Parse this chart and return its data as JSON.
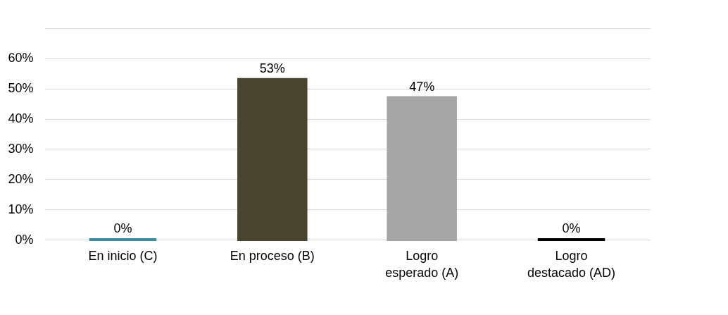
{
  "chart_data": {
    "type": "bar",
    "categories": [
      "En inicio (C)",
      "En proceso (B)",
      "Logro esperado (A)",
      "Logro destacado (AD)"
    ],
    "values": [
      0,
      53,
      47,
      0
    ],
    "colors": [
      "#3f8ba1",
      "#4a4530",
      "#a6a6a6",
      "#000000"
    ],
    "value_labels": [
      "0%",
      "53%",
      "47%",
      "0%"
    ],
    "ylim": [
      0,
      70
    ],
    "yticks": [
      {
        "value": 0,
        "label": "0%"
      },
      {
        "value": 10,
        "label": "10%"
      },
      {
        "value": 20,
        "label": "20%"
      },
      {
        "value": 30,
        "label": "30%"
      },
      {
        "value": 40,
        "label": "40%"
      },
      {
        "value": 50,
        "label": "50%"
      },
      {
        "value": 60,
        "label": "60%"
      },
      {
        "value": 70,
        "label": null
      }
    ],
    "grid": "y"
  }
}
